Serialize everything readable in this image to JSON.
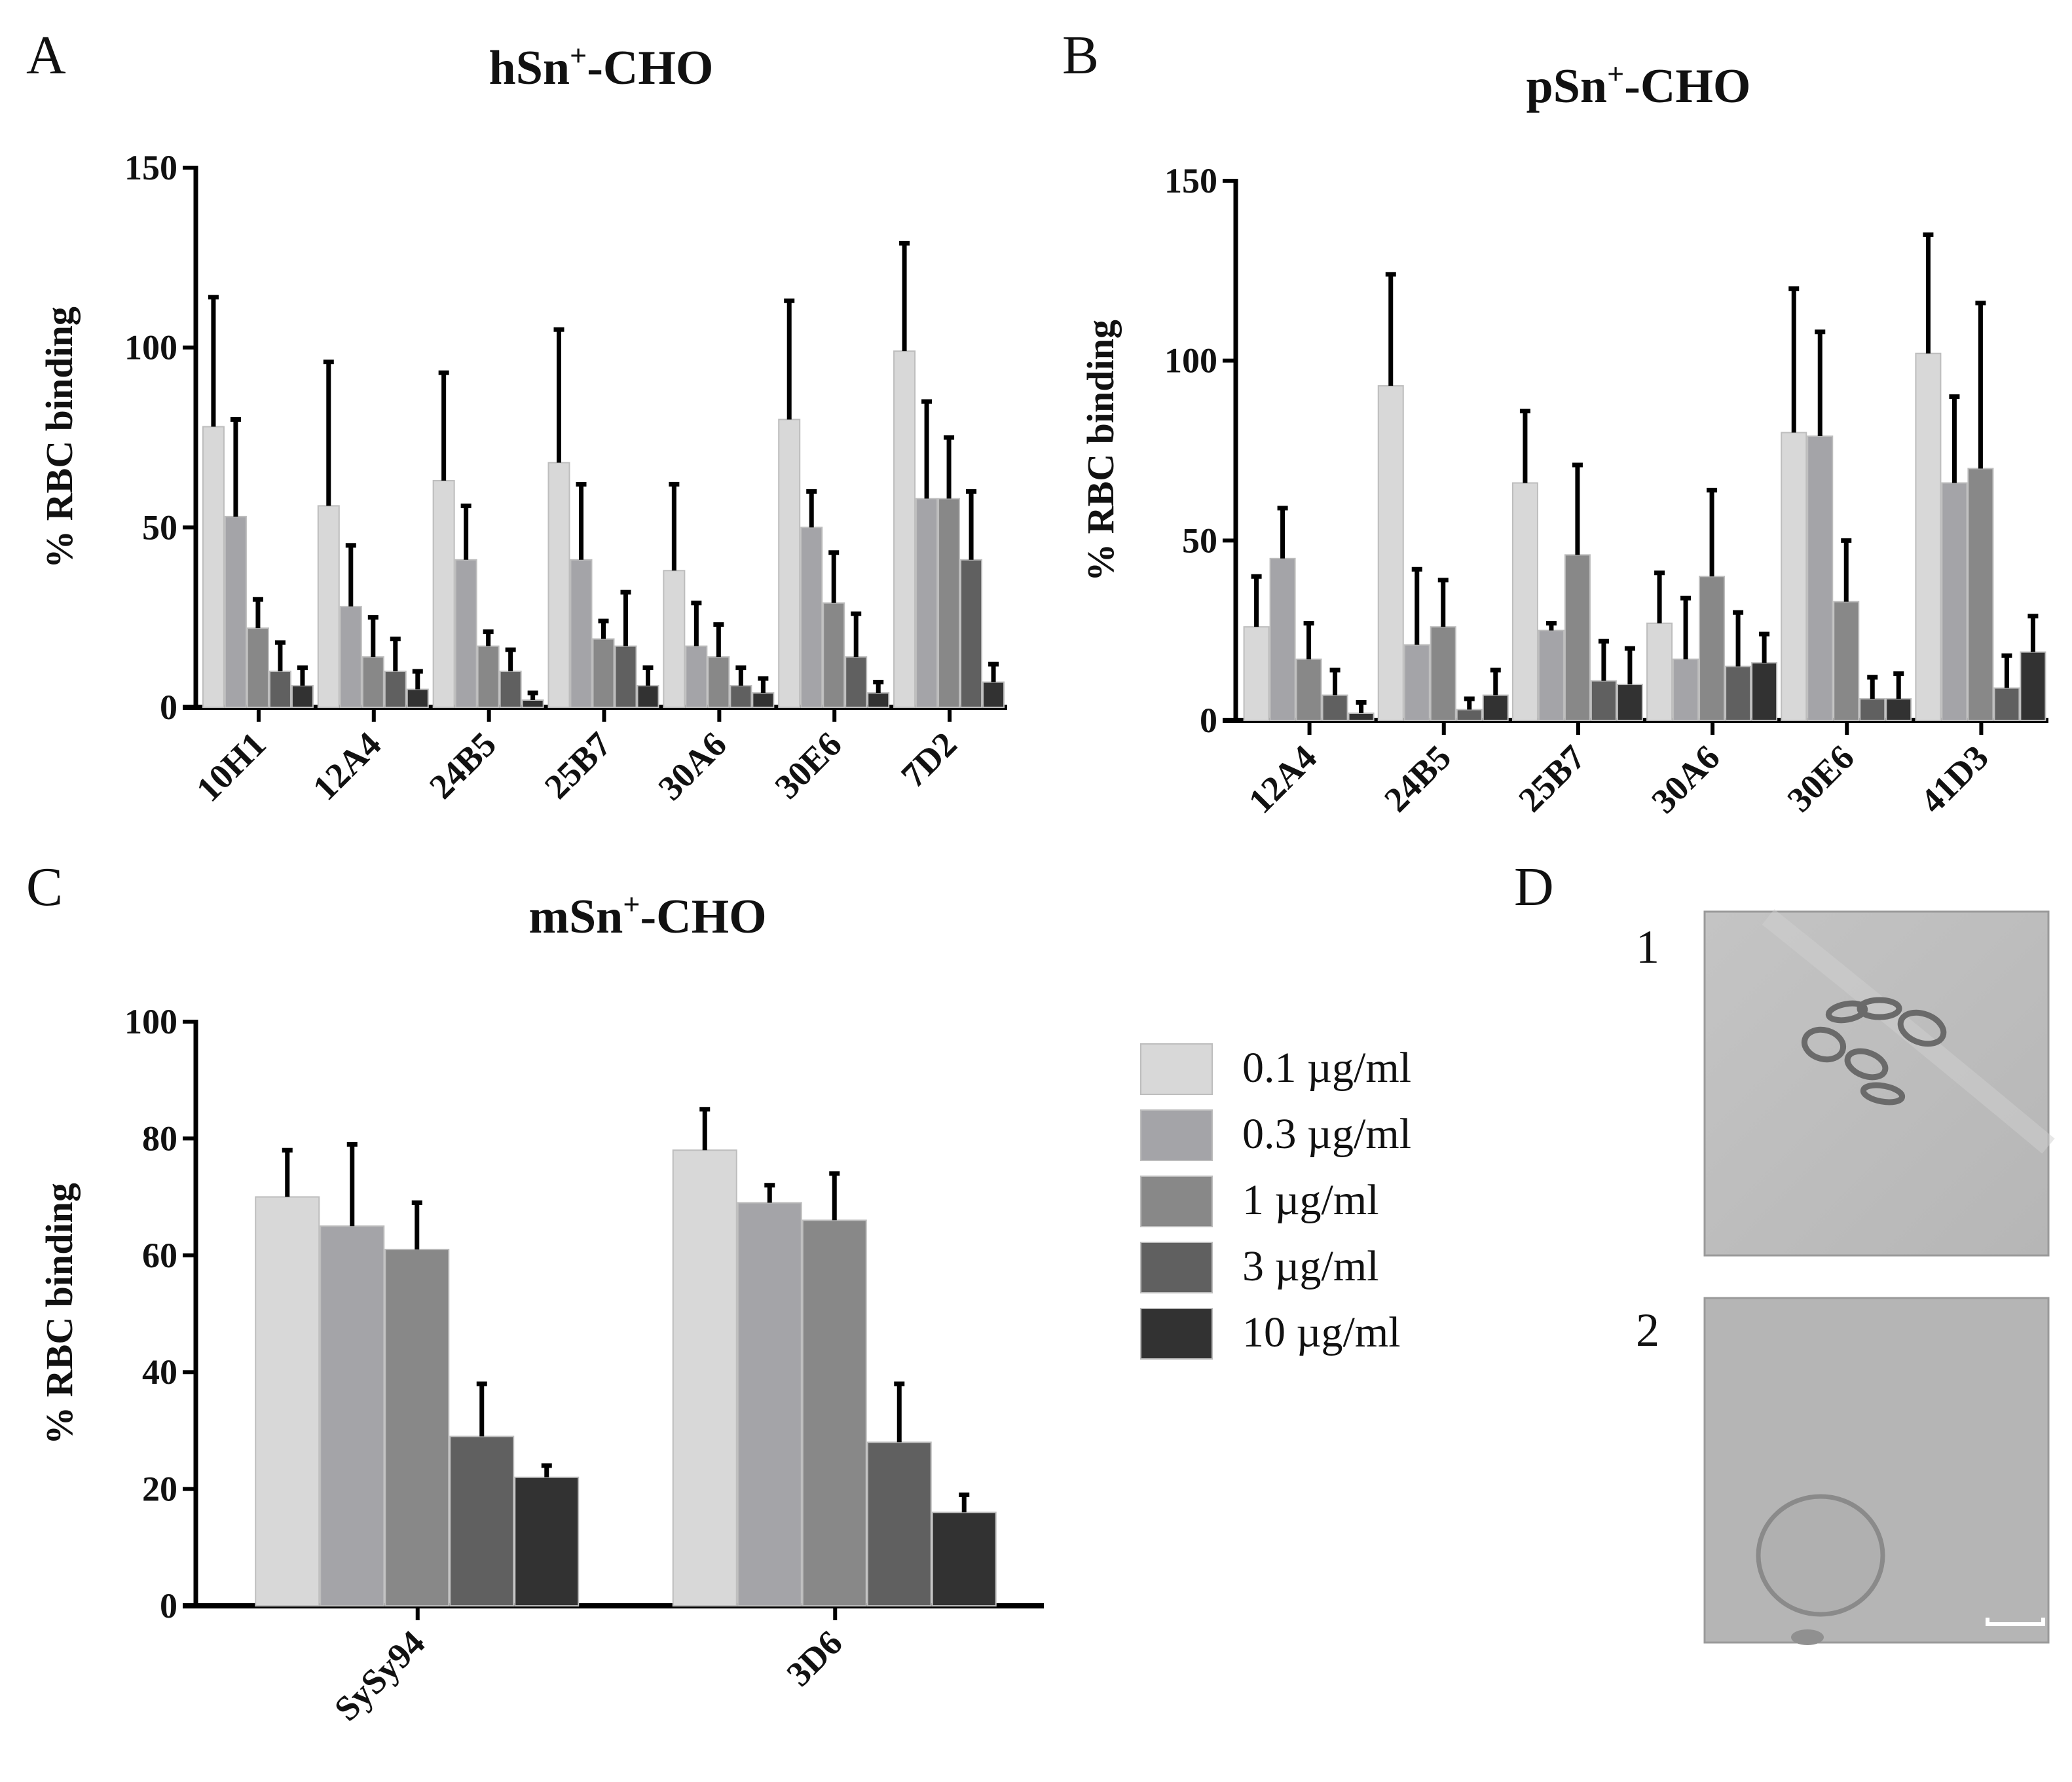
{
  "panels": {
    "a": "A",
    "b": "B",
    "c": "C",
    "d": "D"
  },
  "micrographs": {
    "label_1": "1",
    "label_2": "2"
  },
  "legend": {
    "entries": [
      "0.1 µg/ml",
      "0.3 µg/ml",
      "1 µg/ml",
      "3 µg/ml",
      "10 µg/ml"
    ],
    "colors": [
      "#d8d8d8",
      "#a4a4a8",
      "#888888",
      "#606060",
      "#323232"
    ]
  },
  "chart_data": [
    {
      "type": "bar",
      "title_main": "hSn",
      "title_sup": "+",
      "title_rest": "-CHO",
      "ylabel": "% RBC binding",
      "ylim": [
        0,
        150
      ],
      "yticks": [
        0,
        50,
        100,
        150
      ],
      "categories": [
        "10H1",
        "12A4",
        "24B5",
        "25B7",
        "30A6",
        "30E6",
        "7D2"
      ],
      "series": [
        {
          "name": "0.1 µg/ml",
          "values": [
            78,
            56,
            63,
            68,
            38,
            80,
            99
          ],
          "errors": [
            36,
            40,
            30,
            37,
            24,
            33,
            30
          ]
        },
        {
          "name": "0.3 µg/ml",
          "values": [
            53,
            28,
            41,
            41,
            17,
            50,
            58
          ],
          "errors": [
            27,
            17,
            15,
            21,
            12,
            10,
            27
          ]
        },
        {
          "name": "1 µg/ml",
          "values": [
            22,
            14,
            17,
            19,
            14,
            29,
            58
          ],
          "errors": [
            8,
            11,
            4,
            5,
            9,
            14,
            17
          ]
        },
        {
          "name": "3 µg/ml",
          "values": [
            10,
            10,
            10,
            17,
            6,
            14,
            41
          ],
          "errors": [
            8,
            9,
            6,
            15,
            5,
            12,
            19
          ]
        },
        {
          "name": "10 µg/ml",
          "values": [
            6,
            5,
            2,
            6,
            4,
            4,
            7
          ],
          "errors": [
            5,
            5,
            2,
            5,
            4,
            3,
            5
          ]
        }
      ]
    },
    {
      "type": "bar",
      "title_main": "pSn",
      "title_sup": "+",
      "title_rest": "-CHO",
      "ylabel": "% RBC binding",
      "ylim": [
        0,
        150
      ],
      "yticks": [
        0,
        50,
        100,
        150
      ],
      "categories": [
        "12A4",
        "24B5",
        "25B7",
        "30A6",
        "30E6",
        "41D3"
      ],
      "series": [
        {
          "name": "0.1 µg/ml",
          "values": [
            26,
            93,
            66,
            27,
            80,
            102
          ],
          "errors": [
            14,
            31,
            20,
            14,
            40,
            33
          ]
        },
        {
          "name": "0.3 µg/ml",
          "values": [
            45,
            21,
            25,
            17,
            79,
            66
          ],
          "errors": [
            14,
            21,
            2,
            17,
            29,
            24
          ]
        },
        {
          "name": "1 µg/ml",
          "values": [
            17,
            26,
            46,
            40,
            33,
            70
          ],
          "errors": [
            10,
            13,
            25,
            24,
            17,
            46
          ]
        },
        {
          "name": "3 µg/ml",
          "values": [
            7,
            3,
            11,
            15,
            6,
            9
          ],
          "errors": [
            7,
            3,
            11,
            15,
            6,
            9
          ]
        },
        {
          "name": "10 µg/ml",
          "values": [
            2,
            7,
            10,
            16,
            6,
            19
          ],
          "errors": [
            3,
            7,
            10,
            8,
            7,
            10
          ]
        }
      ]
    },
    {
      "type": "bar",
      "title_main": "mSn",
      "title_sup": "+",
      "title_rest": "-CHO",
      "ylabel": "% RBC binding",
      "ylim": [
        0,
        100
      ],
      "yticks": [
        0,
        20,
        40,
        60,
        80,
        100
      ],
      "categories": [
        "SySy94",
        "3D6"
      ],
      "series": [
        {
          "name": "0.1 µg/ml",
          "values": [
            70,
            78
          ],
          "errors": [
            8,
            7
          ]
        },
        {
          "name": "0.3 µg/ml",
          "values": [
            65,
            69
          ],
          "errors": [
            14,
            3
          ]
        },
        {
          "name": "1 µg/ml",
          "values": [
            61,
            66
          ],
          "errors": [
            8,
            8
          ]
        },
        {
          "name": "3 µg/ml",
          "values": [
            29,
            28
          ],
          "errors": [
            9,
            10
          ]
        },
        {
          "name": "10 µg/ml",
          "values": [
            22,
            16
          ],
          "errors": [
            2,
            3
          ]
        }
      ]
    }
  ]
}
